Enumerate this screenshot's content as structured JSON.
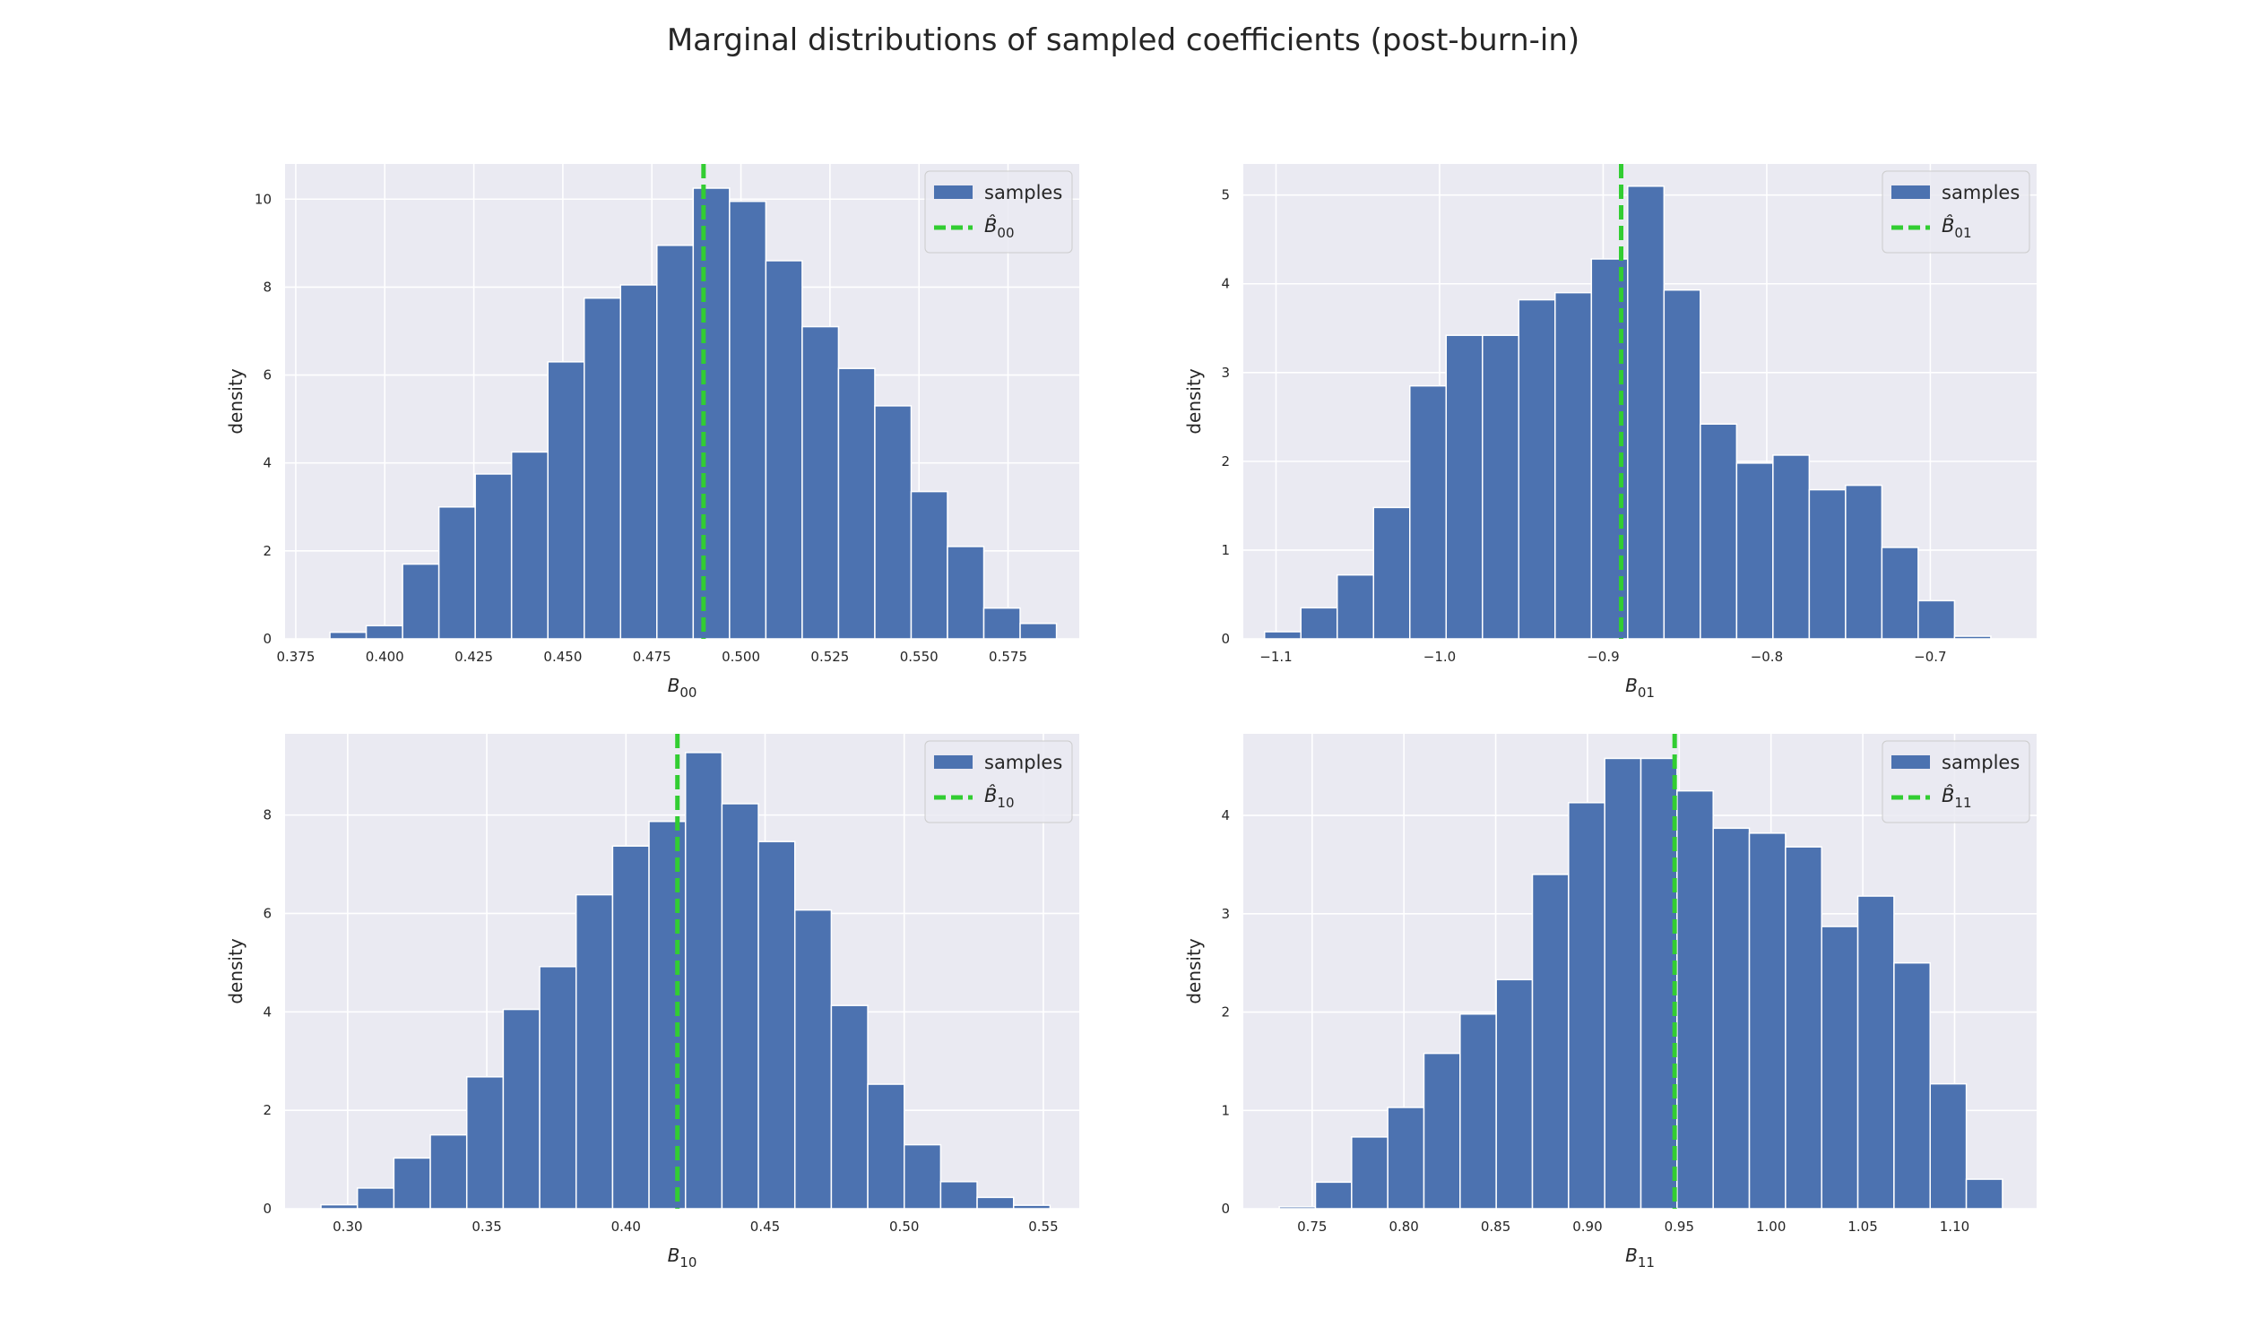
{
  "title": "Marginal distributions of sampled coefficients (post-burn-in)",
  "colors": {
    "bar": "#4c72b0",
    "line": "#32cd32",
    "plot_bg": "#eaeaf2",
    "grid": "#ffffff",
    "bar_edge": "#ffffff"
  },
  "chart_data": [
    {
      "type": "bar",
      "subtype": "histogram",
      "xlabel": "B00",
      "xlabel_main": "B",
      "xlabel_sub": "00",
      "ylabel": "density",
      "xlim": [
        0.372,
        0.595
      ],
      "ylim": [
        0,
        10.8
      ],
      "bin_edges": [
        0.3846,
        0.3948,
        0.405,
        0.4152,
        0.4254,
        0.4356,
        0.4458,
        0.456,
        0.4662,
        0.4764,
        0.4866,
        0.4968,
        0.507,
        0.5172,
        0.5274,
        0.5376,
        0.5478,
        0.558,
        0.5682,
        0.5784,
        0.5886
      ],
      "values": [
        0.15,
        0.3,
        1.7,
        3.0,
        3.75,
        4.25,
        6.3,
        7.75,
        8.05,
        8.95,
        10.25,
        9.95,
        8.6,
        7.1,
        6.15,
        5.3,
        3.35,
        2.1,
        0.7,
        0.35
      ],
      "xticks": [
        0.375,
        0.4,
        0.425,
        0.45,
        0.475,
        0.5,
        0.525,
        0.55,
        0.575
      ],
      "xtick_labels": [
        "0.375",
        "0.400",
        "0.425",
        "0.450",
        "0.475",
        "0.500",
        "0.525",
        "0.550",
        "0.575"
      ],
      "yticks": [
        0,
        2,
        4,
        6,
        8,
        10
      ],
      "ytick_labels": [
        "0",
        "2",
        "4",
        "6",
        "8",
        "10"
      ],
      "vline_x": 0.4895,
      "legend": {
        "position": "top-right",
        "series_label": "samples",
        "line_label_main": "B̂",
        "line_label_sub": "00"
      }
    },
    {
      "type": "bar",
      "subtype": "histogram",
      "xlabel": "B01",
      "xlabel_main": "B",
      "xlabel_sub": "01",
      "ylabel": "density",
      "xlim": [
        -1.12,
        -0.635
      ],
      "ylim": [
        0,
        5.35
      ],
      "bin_edges": [
        -1.107,
        -1.0848,
        -1.0626,
        -1.0404,
        -1.0182,
        -0.996,
        -0.9738,
        -0.9516,
        -0.9294,
        -0.9072,
        -0.885,
        -0.8628,
        -0.8406,
        -0.8184,
        -0.7962,
        -0.774,
        -0.7518,
        -0.7296,
        -0.7074,
        -0.6852,
        -0.663
      ],
      "values": [
        0.08,
        0.35,
        0.72,
        1.48,
        2.85,
        3.42,
        3.42,
        3.82,
        3.9,
        4.28,
        5.1,
        3.93,
        2.42,
        1.98,
        2.07,
        1.68,
        1.73,
        1.03,
        0.43,
        0.03
      ],
      "xticks": [
        -1.1,
        -1.0,
        -0.9,
        -0.8,
        -0.7
      ],
      "xtick_labels": [
        "−1.1",
        "−1.0",
        "−0.9",
        "−0.8",
        "−0.7"
      ],
      "yticks": [
        0,
        1,
        2,
        3,
        4,
        5
      ],
      "ytick_labels": [
        "0",
        "1",
        "2",
        "3",
        "4",
        "5"
      ],
      "vline_x": -0.889,
      "legend": {
        "position": "top-right",
        "series_label": "samples",
        "line_label_main": "B̂",
        "line_label_sub": "01"
      }
    },
    {
      "type": "bar",
      "subtype": "histogram",
      "xlabel": "B10",
      "xlabel_main": "B",
      "xlabel_sub": "10",
      "ylabel": "density",
      "xlim": [
        0.2775,
        0.5629
      ],
      "ylim": [
        0,
        9.65
      ],
      "bin_edges": [
        0.2904,
        0.3035,
        0.3166,
        0.3297,
        0.3428,
        0.3559,
        0.369,
        0.3821,
        0.3952,
        0.4083,
        0.4214,
        0.4345,
        0.4476,
        0.4607,
        0.4738,
        0.4869,
        0.5,
        0.5131,
        0.5262,
        0.5393,
        0.5524
      ],
      "values": [
        0.08,
        0.42,
        1.03,
        1.5,
        2.68,
        4.05,
        4.92,
        6.38,
        7.37,
        7.87,
        9.27,
        8.23,
        7.46,
        6.07,
        4.13,
        2.53,
        1.3,
        0.55,
        0.23,
        0.07
      ],
      "xticks": [
        0.3,
        0.35,
        0.4,
        0.45,
        0.5,
        0.55
      ],
      "xtick_labels": [
        "0.30",
        "0.35",
        "0.40",
        "0.45",
        "0.50",
        "0.55"
      ],
      "yticks": [
        0,
        2,
        4,
        6,
        8
      ],
      "ytick_labels": [
        "0",
        "2",
        "4",
        "6",
        "8"
      ],
      "vline_x": 0.4185,
      "legend": {
        "position": "top-right",
        "series_label": "samples",
        "line_label_main": "B̂",
        "line_label_sub": "10"
      }
    },
    {
      "type": "bar",
      "subtype": "histogram",
      "xlabel": "B11",
      "xlabel_main": "B",
      "xlabel_sub": "11",
      "ylabel": "density",
      "xlim": [
        0.7125,
        1.1447
      ],
      "ylim": [
        0,
        4.83
      ],
      "bin_edges": [
        0.7321,
        0.7518,
        0.7715,
        0.7912,
        0.8109,
        0.8306,
        0.8503,
        0.87,
        0.8897,
        0.9094,
        0.9291,
        0.9488,
        0.9685,
        0.9882,
        1.0079,
        1.0276,
        1.0473,
        1.067,
        1.0867,
        1.1064,
        1.1261
      ],
      "values": [
        0.02,
        0.27,
        0.73,
        1.03,
        1.58,
        1.98,
        2.33,
        3.4,
        4.13,
        4.58,
        4.58,
        4.25,
        3.87,
        3.82,
        3.68,
        2.87,
        3.18,
        2.5,
        1.27,
        0.3
      ],
      "xticks": [
        0.75,
        0.8,
        0.85,
        0.9,
        0.95,
        1.0,
        1.05,
        1.1
      ],
      "xtick_labels": [
        "0.75",
        "0.80",
        "0.85",
        "0.90",
        "0.95",
        "1.00",
        "1.05",
        "1.10"
      ],
      "yticks": [
        0,
        1,
        2,
        3,
        4
      ],
      "ytick_labels": [
        "0",
        "1",
        "2",
        "3",
        "4"
      ],
      "vline_x": 0.9475,
      "legend": {
        "position": "top-right",
        "series_label": "samples",
        "line_label_main": "B̂",
        "line_label_sub": "11"
      }
    }
  ]
}
